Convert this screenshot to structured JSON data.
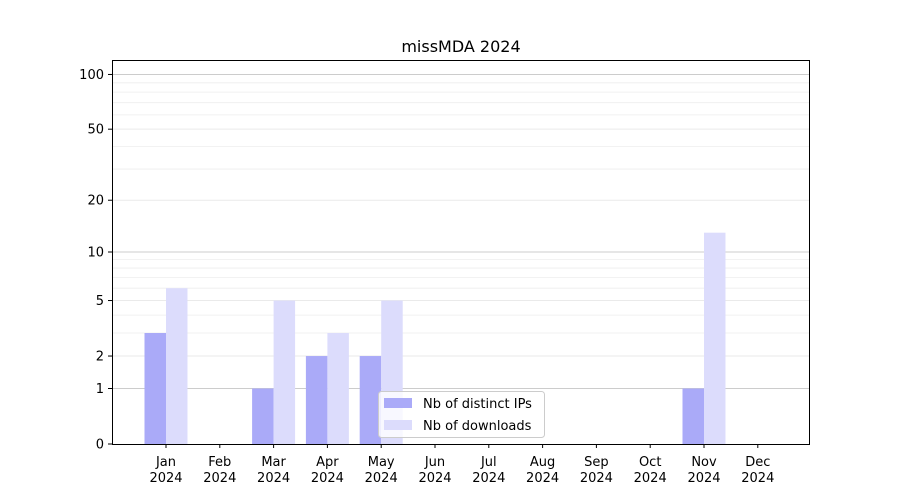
{
  "chart_data": {
    "type": "bar",
    "title": "missMDA 2024",
    "xlabel": "",
    "ylabel": "",
    "y_scale": "symlog",
    "ylim": [
      0,
      120
    ],
    "y_ticks": [
      0,
      1,
      2,
      5,
      10,
      20,
      50,
      100
    ],
    "categories": [
      {
        "month": "Jan",
        "year": "2024"
      },
      {
        "month": "Feb",
        "year": "2024"
      },
      {
        "month": "Mar",
        "year": "2024"
      },
      {
        "month": "Apr",
        "year": "2024"
      },
      {
        "month": "May",
        "year": "2024"
      },
      {
        "month": "Jun",
        "year": "2024"
      },
      {
        "month": "Jul",
        "year": "2024"
      },
      {
        "month": "Aug",
        "year": "2024"
      },
      {
        "month": "Sep",
        "year": "2024"
      },
      {
        "month": "Oct",
        "year": "2024"
      },
      {
        "month": "Nov",
        "year": "2024"
      },
      {
        "month": "Dec",
        "year": "2024"
      }
    ],
    "series": [
      {
        "name": "Nb of distinct IPs",
        "color": "#aaaaf8",
        "values": [
          3,
          0,
          1,
          2,
          2,
          0,
          0,
          0,
          0,
          0,
          1,
          0
        ]
      },
      {
        "name": "Nb of downloads",
        "color": "#dcdcfc",
        "values": [
          6,
          0,
          5,
          3,
          5,
          0,
          0,
          0,
          0,
          0,
          13,
          0
        ]
      }
    ],
    "grid": true,
    "legend_position": "lower center"
  }
}
